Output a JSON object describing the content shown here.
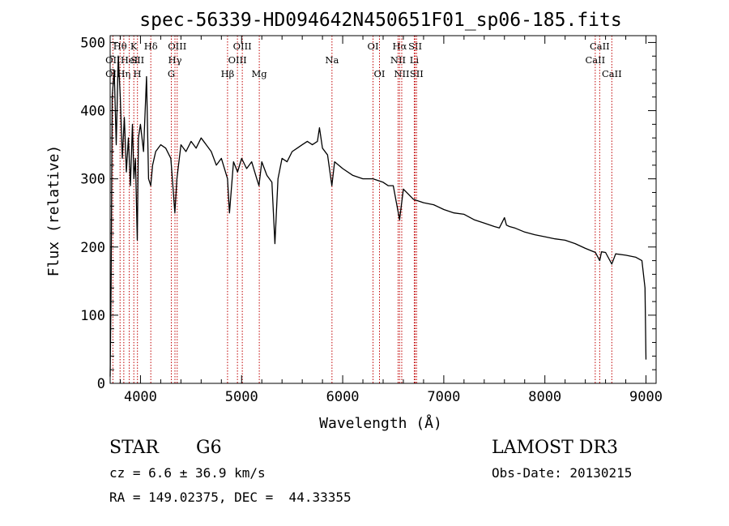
{
  "chart_data": {
    "type": "line",
    "title": "spec-56339-HD094642N450651F01_sp06-185.fits",
    "xlabel": "Wavelength (Å)",
    "ylabel": "Flux (relative)",
    "xlim": [
      3700,
      9100
    ],
    "ylim": [
      0,
      510
    ],
    "x_ticks": [
      4000,
      5000,
      6000,
      7000,
      8000,
      9000
    ],
    "y_ticks": [
      0,
      100,
      200,
      300,
      400,
      500
    ],
    "x_tick_labels": [
      "4000",
      "5000",
      "6000",
      "7000",
      "8000",
      "9000"
    ],
    "y_tick_labels": [
      "0",
      "100",
      "200",
      "300",
      "400",
      "500"
    ],
    "grid": false,
    "series": [
      {
        "name": "flux",
        "x": [
          3700,
          3710,
          3720,
          3740,
          3760,
          3780,
          3800,
          3820,
          3840,
          3860,
          3880,
          3900,
          3920,
          3935,
          3950,
          3968,
          3980,
          4000,
          4030,
          4060,
          4080,
          4101,
          4120,
          4150,
          4200,
          4250,
          4300,
          4320,
          4340,
          4360,
          4400,
          4450,
          4500,
          4550,
          4600,
          4650,
          4700,
          4750,
          4800,
          4861,
          4880,
          4920,
          4960,
          5000,
          5050,
          5100,
          5150,
          5172,
          5200,
          5250,
          5300,
          5330,
          5360,
          5400,
          5450,
          5500,
          5550,
          5600,
          5650,
          5700,
          5750,
          5770,
          5800,
          5850,
          5893,
          5920,
          6000,
          6100,
          6200,
          6300,
          6400,
          6450,
          6500,
          6563,
          6600,
          6700,
          6800,
          6900,
          7000,
          7100,
          7200,
          7300,
          7400,
          7500,
          7550,
          7600,
          7620,
          7650,
          7700,
          7800,
          7900,
          8000,
          8100,
          8200,
          8300,
          8400,
          8500,
          8542,
          8560,
          8600,
          8662,
          8700,
          8800,
          8900,
          8960,
          8990,
          9000
        ],
        "values": [
          10,
          150,
          420,
          460,
          350,
          480,
          420,
          330,
          390,
          310,
          360,
          290,
          380,
          300,
          330,
          210,
          360,
          380,
          340,
          450,
          300,
          290,
          320,
          340,
          350,
          345,
          330,
          290,
          250,
          300,
          350,
          340,
          355,
          345,
          360,
          350,
          340,
          320,
          330,
          300,
          250,
          325,
          310,
          330,
          315,
          325,
          300,
          290,
          325,
          305,
          295,
          205,
          300,
          330,
          325,
          340,
          345,
          350,
          355,
          350,
          355,
          375,
          345,
          335,
          290,
          325,
          315,
          305,
          300,
          300,
          295,
          290,
          290,
          240,
          285,
          270,
          265,
          262,
          255,
          250,
          248,
          240,
          235,
          230,
          228,
          243,
          232,
          230,
          228,
          222,
          218,
          215,
          212,
          210,
          205,
          198,
          192,
          180,
          193,
          192,
          175,
          190,
          188,
          185,
          180,
          140,
          35
        ]
      }
    ],
    "line_markers": [
      {
        "label": "OII",
        "x": 3727,
        "row": 2
      },
      {
        "label": "OII",
        "x": 3727,
        "row": 3
      },
      {
        "label": "Hθ",
        "x": 3798,
        "row": 1
      },
      {
        "label": "Hη",
        "x": 3835,
        "row": 3
      },
      {
        "label": "HeI",
        "x": 3889,
        "row": 2
      },
      {
        "label": "K",
        "x": 3934,
        "row": 1
      },
      {
        "label": "SII",
        "x": 3970,
        "row": 2
      },
      {
        "label": "H",
        "x": 3969,
        "row": 3
      },
      {
        "label": "Hδ",
        "x": 4102,
        "row": 1
      },
      {
        "label": "OIII",
        "x": 4363,
        "row": 1
      },
      {
        "label": "Hγ",
        "x": 4341,
        "row": 2
      },
      {
        "label": "G",
        "x": 4305,
        "row": 3
      },
      {
        "label": "Hβ",
        "x": 4861,
        "row": 3
      },
      {
        "label": "OIII",
        "x": 5007,
        "row": 1
      },
      {
        "label": "OIII",
        "x": 4959,
        "row": 2
      },
      {
        "label": "Mg",
        "x": 5175,
        "row": 3
      },
      {
        "label": "Na",
        "x": 5894,
        "row": 2
      },
      {
        "label": "OI",
        "x": 6300,
        "row": 1
      },
      {
        "label": "OI",
        "x": 6364,
        "row": 3
      },
      {
        "label": "Hα",
        "x": 6563,
        "row": 1
      },
      {
        "label": "NII",
        "x": 6548,
        "row": 2
      },
      {
        "label": "NII",
        "x": 6584,
        "row": 3
      },
      {
        "label": "SII",
        "x": 6717,
        "row": 1
      },
      {
        "label": "Li",
        "x": 6708,
        "row": 2
      },
      {
        "label": "SII",
        "x": 6731,
        "row": 3
      },
      {
        "label": "CaII",
        "x": 8542,
        "row": 1
      },
      {
        "label": "CaII",
        "x": 8498,
        "row": 2
      },
      {
        "label": "CaII",
        "x": 8662,
        "row": 3
      }
    ]
  },
  "info": {
    "object_type": "STAR",
    "subclass": "G6",
    "survey": "LAMOST DR3",
    "cz": "cz = 6.6 ± 36.9 km/s",
    "obs_date": "Obs-Date: 20130215",
    "coords": "RA = 149.02375, DEC =  44.33355"
  }
}
